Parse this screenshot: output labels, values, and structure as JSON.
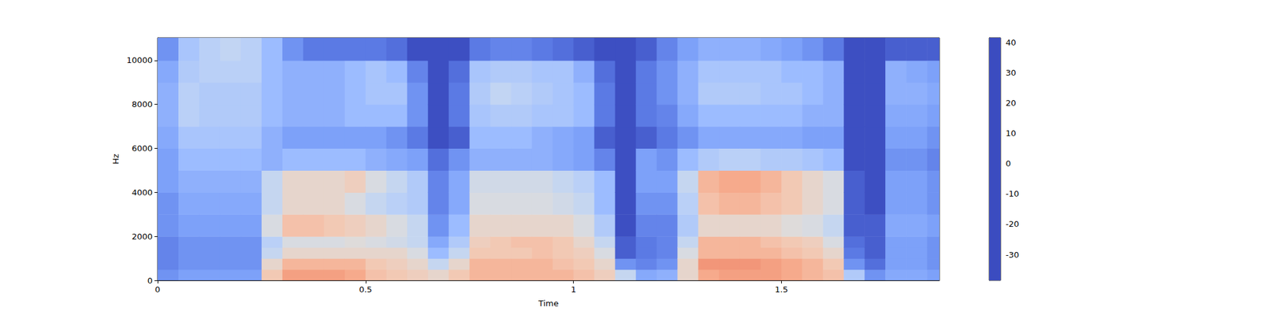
{
  "chart_data": {
    "type": "heatmap",
    "xlabel": "Time",
    "ylabel": "Hz",
    "xlim": [
      0,
      1.88
    ],
    "xticks": [
      0,
      0.5,
      1,
      1.5
    ],
    "ylim": [
      0,
      11025
    ],
    "yticks": [
      0,
      2000,
      4000,
      6000,
      8000,
      10000
    ],
    "grid": false,
    "x_bins": [
      0,
      0.05,
      0.1,
      0.15,
      0.2,
      0.25,
      0.3,
      0.35,
      0.4,
      0.45,
      0.5,
      0.55,
      0.6,
      0.65,
      0.7,
      0.75,
      0.8,
      0.85,
      0.9,
      0.95,
      1.0,
      1.05,
      1.1,
      1.15,
      1.2,
      1.25,
      1.3,
      1.35,
      1.4,
      1.45,
      1.5,
      1.55,
      1.6,
      1.65,
      1.7,
      1.75,
      1.8,
      1.85,
      1.88
    ],
    "y_bins": [
      0,
      500,
      1000,
      1500,
      2000,
      3000,
      4000,
      5000,
      6000,
      7000,
      8000,
      9000,
      10000,
      11025
    ],
    "z": [
      [
        -25,
        -28,
        -28,
        -28,
        -25,
        -25,
        -22,
        -22,
        -20,
        -18,
        -18,
        -20,
        -25
      ],
      [
        -22,
        -25,
        -25,
        -25,
        -22,
        -20,
        -18,
        -15,
        -12,
        -8,
        -8,
        -10,
        -12
      ],
      [
        -22,
        -25,
        -25,
        -25,
        -22,
        -20,
        -18,
        -15,
        -12,
        -10,
        -10,
        -8,
        -8
      ],
      [
        -22,
        -25,
        -25,
        -25,
        -22,
        -20,
        -18,
        -15,
        -12,
        -10,
        -10,
        -8,
        -6
      ],
      [
        -22,
        -25,
        -25,
        -25,
        -22,
        -20,
        -18,
        -15,
        -12,
        -10,
        -10,
        -8,
        -8
      ],
      [
        10,
        5,
        -5,
        -8,
        0,
        -5,
        -5,
        -18,
        -18,
        -15,
        -15,
        -15,
        -15
      ],
      [
        20,
        15,
        5,
        0,
        12,
        5,
        5,
        -15,
        -22,
        -18,
        -18,
        -18,
        -25
      ],
      [
        20,
        15,
        5,
        0,
        12,
        5,
        5,
        -15,
        -22,
        -18,
        -18,
        -18,
        -30
      ],
      [
        20,
        15,
        5,
        0,
        10,
        5,
        5,
        -15,
        -22,
        -18,
        -18,
        -18,
        -30
      ],
      [
        18,
        15,
        5,
        2,
        8,
        0,
        8,
        -15,
        -22,
        -15,
        -15,
        -15,
        -30
      ],
      [
        12,
        10,
        5,
        0,
        5,
        -5,
        0,
        -18,
        -22,
        -15,
        -12,
        -12,
        -30
      ],
      [
        10,
        8,
        5,
        -2,
        0,
        -8,
        -5,
        -20,
        -25,
        -15,
        -12,
        -15,
        -32
      ],
      [
        8,
        5,
        0,
        -5,
        -5,
        -10,
        -10,
        -22,
        -30,
        -25,
        -25,
        -28,
        -38
      ],
      [
        5,
        -5,
        -15,
        -20,
        -25,
        -28,
        -28,
        -32,
        -38,
        -38,
        -38,
        -38,
        -38
      ],
      [
        10,
        5,
        -5,
        -10,
        -15,
        -20,
        -20,
        -25,
        -35,
        -30,
        -30,
        -32,
        -38
      ],
      [
        15,
        15,
        10,
        8,
        5,
        0,
        -2,
        -18,
        -15,
        -12,
        -10,
        -12,
        -30
      ],
      [
        15,
        15,
        10,
        10,
        5,
        0,
        -2,
        -18,
        -15,
        -10,
        -6,
        -10,
        -28
      ],
      [
        15,
        15,
        10,
        12,
        5,
        0,
        -2,
        -18,
        -15,
        -10,
        -8,
        -10,
        -28
      ],
      [
        15,
        15,
        12,
        12,
        5,
        0,
        -2,
        -18,
        -18,
        -12,
        -10,
        -12,
        -30
      ],
      [
        15,
        12,
        10,
        10,
        5,
        -2,
        -5,
        -20,
        -20,
        -12,
        -12,
        -12,
        -32
      ],
      [
        12,
        10,
        8,
        5,
        0,
        -5,
        -8,
        -22,
        -22,
        -15,
        -15,
        -18,
        -35
      ],
      [
        8,
        5,
        0,
        -5,
        -10,
        -15,
        -15,
        -28,
        -35,
        -30,
        -30,
        -32,
        -38
      ],
      [
        -5,
        -25,
        -35,
        -35,
        -38,
        -38,
        -38,
        -38,
        -38,
        -38,
        -38,
        -38,
        -38
      ],
      [
        -20,
        -28,
        -30,
        -30,
        -28,
        -25,
        -22,
        -22,
        -35,
        -30,
        -30,
        -30,
        -35
      ],
      [
        -18,
        -25,
        -28,
        -28,
        -28,
        -25,
        -22,
        -25,
        -30,
        -28,
        -25,
        -25,
        -28
      ],
      [
        5,
        5,
        0,
        -5,
        -10,
        -8,
        -5,
        -15,
        -25,
        -20,
        -18,
        -18,
        -22
      ],
      [
        18,
        22,
        15,
        15,
        5,
        12,
        15,
        -10,
        -20,
        -15,
        -10,
        -12,
        -18
      ],
      [
        20,
        22,
        15,
        15,
        5,
        15,
        18,
        -8,
        -20,
        -15,
        -10,
        -12,
        -18
      ],
      [
        20,
        22,
        15,
        15,
        5,
        15,
        18,
        -8,
        -20,
        -15,
        -10,
        -12,
        -18
      ],
      [
        20,
        20,
        15,
        12,
        5,
        12,
        15,
        -10,
        -20,
        -15,
        -12,
        -12,
        -20
      ],
      [
        18,
        18,
        12,
        10,
        2,
        10,
        10,
        -10,
        -20,
        -15,
        -12,
        -15,
        -22
      ],
      [
        15,
        15,
        10,
        8,
        0,
        5,
        5,
        -12,
        -22,
        -18,
        -15,
        -15,
        -25
      ],
      [
        12,
        10,
        5,
        0,
        -5,
        0,
        0,
        -15,
        -22,
        -18,
        -18,
        -18,
        -30
      ],
      [
        -10,
        -25,
        -30,
        -32,
        -35,
        -35,
        -35,
        -38,
        -38,
        -38,
        -38,
        -38,
        -38
      ],
      [
        -25,
        -32,
        -35,
        -35,
        -35,
        -38,
        -38,
        -38,
        -38,
        -38,
        -38,
        -38,
        -38
      ],
      [
        -20,
        -22,
        -22,
        -22,
        -20,
        -22,
        -22,
        -25,
        -22,
        -20,
        -18,
        -18,
        -35
      ],
      [
        -20,
        -22,
        -22,
        -22,
        -20,
        -22,
        -22,
        -25,
        -22,
        -20,
        -18,
        -20,
        -35
      ],
      [
        -22,
        -25,
        -25,
        -25,
        -22,
        -25,
        -25,
        -28,
        -25,
        -22,
        -20,
        -22,
        -35
      ]
    ],
    "colorbar": {
      "range": [
        -38.5,
        41.5
      ],
      "ticks": [
        -30,
        -20,
        -10,
        0,
        10,
        20,
        30,
        40
      ]
    }
  }
}
